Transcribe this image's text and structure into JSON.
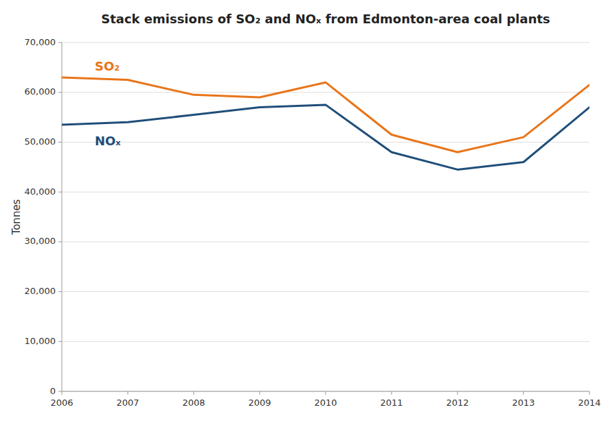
{
  "chart_data": {
    "type": "line",
    "title": "Stack emissions of SO₂ and NOₓ from Edmonton-area coal plants",
    "y_label": "Tonnes",
    "x": [
      2006,
      2007,
      2008,
      2009,
      2010,
      2011,
      2012,
      2013,
      2014
    ],
    "series": [
      {
        "color": "#E8751A",
        "values": [
          63000,
          62500,
          59500,
          59000,
          62000,
          51500,
          48000,
          51000,
          61500
        ]
      },
      {
        "color": "#1F4E79",
        "values": [
          53500,
          54000,
          55500,
          57000,
          57500,
          48000,
          44500,
          46000,
          57000
        ]
      }
    ],
    "annotations": [
      {
        "text": "SO₂",
        "x": 2006.5,
        "y": 65000,
        "color": "#E8751A"
      },
      {
        "text": "NOₓ",
        "x": 2006.5,
        "y": 50000,
        "color": "#1F4E79"
      }
    ],
    "xlim": [
      2006,
      2014
    ],
    "xticks": [
      2006,
      2007,
      2008,
      2009,
      2010,
      2011,
      2012,
      2013,
      2014
    ],
    "ylim": [
      0,
      70000
    ],
    "yticks": [
      0,
      {
        "value": 10000,
        "label": "10,000"
      },
      {
        "value": 20000,
        "label": "20,000"
      },
      {
        "value": 30000,
        "label": "30,000"
      },
      {
        "value": 40000,
        "label": "40,000"
      },
      {
        "value": 50000,
        "label": "50,000"
      },
      {
        "value": 60000,
        "label": "60,000"
      },
      {
        "value": 70000,
        "label": "70,000"
      }
    ],
    "grid": true
  }
}
